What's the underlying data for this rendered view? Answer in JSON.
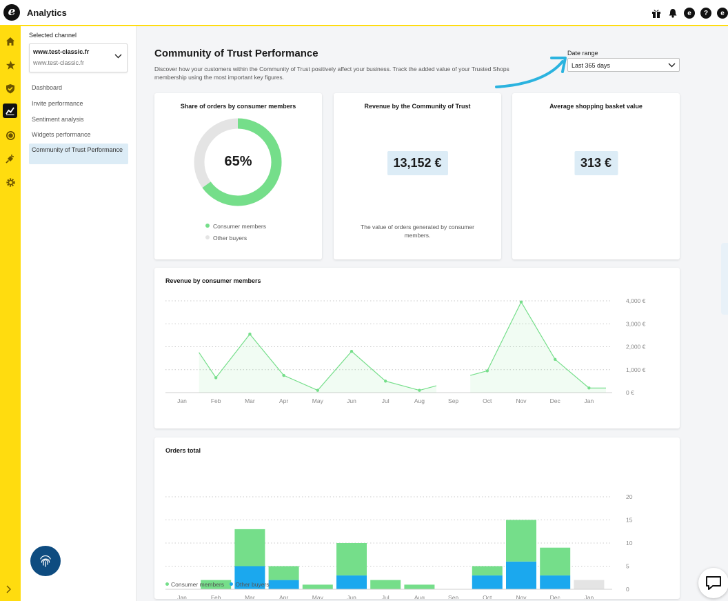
{
  "app": {
    "title": "Analytics"
  },
  "top_icons": [
    "gift-icon",
    "bell-icon",
    "trustedshops-icon",
    "help-icon",
    "profile-icon"
  ],
  "rail_icons": [
    "home-icon",
    "star-icon",
    "shield-icon",
    "analytics-icon",
    "coin-icon",
    "plug-icon",
    "gear-icon"
  ],
  "sidebar": {
    "selected_channel_label": "Selected channel",
    "channel_name": "www.test-classic.fr",
    "channel_sub": "www.test-classic.fr",
    "items": [
      {
        "label": "Dashboard"
      },
      {
        "label": "Invite performance"
      },
      {
        "label": "Sentiment analysis"
      },
      {
        "label": "Widgets performance"
      },
      {
        "label": "Community of Trust Performance"
      }
    ]
  },
  "header": {
    "title": "Community of Trust Performance",
    "description": "Discover how your customers within the Community of Trust positively affect your business. Track the added value of your Trusted Shops membership using the most important key figures.",
    "date_range_label": "Date range",
    "date_range_value": "Last 365 days"
  },
  "cards": {
    "share": {
      "title": "Share of orders by consumer members",
      "value": "65%",
      "fraction": 0.65,
      "legend": [
        "Consumer members",
        "Other buyers"
      ]
    },
    "revenue": {
      "title": "Revenue by the Community of Trust",
      "value": "13,152 €",
      "note": "The value of orders generated by consumer members."
    },
    "basket": {
      "title": "Average shopping basket value",
      "value": "313 €"
    }
  },
  "colors": {
    "yellow": "#ffdc0f",
    "green": "#75de8a",
    "blue": "#1ba8ee",
    "grey": "#e4e4e4",
    "arrow": "#2bb3df"
  },
  "chart_data": [
    {
      "type": "line",
      "title": "Revenue by consumer members",
      "categories": [
        "Jan",
        "Feb",
        "Mar",
        "Apr",
        "May",
        "Jun",
        "Jul",
        "Aug",
        "Sep",
        "Oct",
        "Nov",
        "Dec",
        "Jan"
      ],
      "y_ticks": [
        "0 €",
        "1,000 €",
        "2,000 €",
        "3,000 €",
        "4,000 €"
      ],
      "ylim": [
        0,
        4000
      ],
      "grid": true,
      "series": [
        {
          "points": [
            [
              0.5,
              1750
            ],
            [
              1,
              650
            ],
            [
              2,
              2550
            ],
            [
              3,
              750
            ],
            [
              4,
              100
            ],
            [
              5,
              1800
            ],
            [
              6,
              500
            ],
            [
              7,
              100
            ],
            [
              7.5,
              300
            ],
            [
              null,
              null
            ],
            [
              8.5,
              750
            ],
            [
              9,
              950
            ],
            [
              10,
              3950
            ],
            [
              11,
              1450
            ],
            [
              12,
              200
            ],
            [
              12.5,
              200
            ]
          ],
          "markers": [
            1,
            2,
            3,
            4,
            5,
            6,
            7,
            9,
            10,
            11,
            12
          ]
        }
      ]
    },
    {
      "type": "bar",
      "title": "Orders total",
      "categories": [
        "Jan",
        "Feb",
        "Mar",
        "Apr",
        "May",
        "Jun",
        "Jul",
        "Aug",
        "Sep",
        "Oct",
        "Nov",
        "Dec",
        "Jan"
      ],
      "y_ticks": [
        "0",
        "5",
        "10",
        "15",
        "20"
      ],
      "ylim": [
        0,
        20
      ],
      "grid": true,
      "stacked": true,
      "series": [
        {
          "name": "Other buyers",
          "values": [
            0,
            0,
            5,
            2,
            0,
            3,
            0,
            0,
            0,
            3,
            6,
            3,
            0
          ]
        },
        {
          "name": "Consumer members",
          "values": [
            0,
            2,
            8,
            3,
            1,
            7,
            2,
            1,
            0,
            2,
            9,
            6,
            0
          ]
        }
      ],
      "extra": {
        "category": 12,
        "value": 2,
        "note": "grey partial bar"
      },
      "legend": [
        "Consumer members",
        "Other buyers"
      ],
      "legend_position": "bottom-left"
    }
  ]
}
